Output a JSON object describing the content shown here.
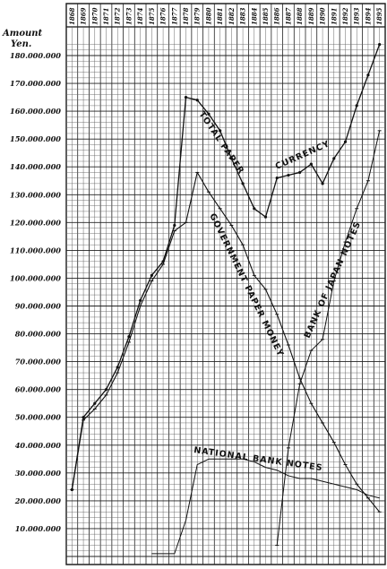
{
  "chart_data": {
    "type": "line",
    "title": "",
    "ylabel": "Amount Yen.",
    "xlabel": "",
    "ylim": [
      0,
      190000000
    ],
    "grid": true,
    "x": [
      "1868",
      "1869",
      "1870",
      "1871",
      "1872",
      "1873",
      "1874",
      "1875",
      "1876",
      "1877",
      "1878",
      "1879",
      "1880",
      "1881",
      "1882",
      "1883",
      "1884",
      "1885",
      "1886",
      "1887",
      "1888",
      "1889",
      "1890",
      "1891",
      "1892",
      "1893",
      "1894",
      "1895"
    ],
    "y_ticks": [
      {
        "value": 10000000,
        "label": "10.000.000"
      },
      {
        "value": 20000000,
        "label": "20.000.000"
      },
      {
        "value": 30000000,
        "label": "30.000.000"
      },
      {
        "value": 40000000,
        "label": "40.000.000"
      },
      {
        "value": 50000000,
        "label": "50.000.000"
      },
      {
        "value": 60000000,
        "label": "60.000.000"
      },
      {
        "value": 70000000,
        "label": "70.000.000"
      },
      {
        "value": 80000000,
        "label": "80.000.000"
      },
      {
        "value": 90000000,
        "label": "90.000.000"
      },
      {
        "value": 100000000,
        "label": "100.000.000"
      },
      {
        "value": 110000000,
        "label": "110.000.000"
      },
      {
        "value": 120000000,
        "label": "120.000.000"
      },
      {
        "value": 130000000,
        "label": "130.000.000"
      },
      {
        "value": 140000000,
        "label": "140.000.000"
      },
      {
        "value": 150000000,
        "label": "150.000.000"
      },
      {
        "value": 160000000,
        "label": "160.000.000"
      },
      {
        "value": 170000000,
        "label": "170.000.000"
      },
      {
        "value": 180000000,
        "label": "180.000.000"
      }
    ],
    "series": [
      {
        "name": "TOTAL PAPER CURRENCY",
        "values": [
          24000000,
          50000000,
          55000000,
          60000000,
          68000000,
          79000000,
          92000000,
          101000000,
          106000000,
          119000000,
          165000000,
          164000000,
          159000000,
          153000000,
          143000000,
          134000000,
          125000000,
          122000000,
          136000000,
          137000000,
          138000000,
          141000000,
          134000000,
          143000000,
          149000000,
          162000000,
          173000000,
          184000000
        ]
      },
      {
        "name": "GOVERNMENT PAPER MONEY",
        "values": [
          24000000,
          49000000,
          53000000,
          58000000,
          66000000,
          77000000,
          90000000,
          99000000,
          105000000,
          117000000,
          120000000,
          138000000,
          131000000,
          125000000,
          119000000,
          112000000,
          101000000,
          96000000,
          87000000,
          76000000,
          64000000,
          55000000,
          48000000,
          41000000,
          33000000,
          26000000,
          21000000,
          16000000
        ]
      },
      {
        "name": "NATIONAL BANK NOTES",
        "values": [
          null,
          null,
          null,
          null,
          null,
          null,
          null,
          1000000,
          1000000,
          1000000,
          13000000,
          33000000,
          35000000,
          35000000,
          35000000,
          35000000,
          34000000,
          32000000,
          31000000,
          29000000,
          28000000,
          28000000,
          27000000,
          26000000,
          25000000,
          24000000,
          22000000,
          21000000
        ]
      },
      {
        "name": "BANK OF JAPAN NOTES",
        "values": [
          null,
          null,
          null,
          null,
          null,
          null,
          null,
          null,
          null,
          null,
          null,
          null,
          null,
          null,
          null,
          null,
          null,
          null,
          4000000,
          39000000,
          62000000,
          74000000,
          78000000,
          99000000,
          113000000,
          125000000,
          135000000,
          153000000
        ]
      }
    ],
    "annotations": [
      {
        "text": "TOTAL PAPER",
        "series": "TOTAL PAPER CURRENCY"
      },
      {
        "text": "CURRENCY",
        "series": "TOTAL PAPER CURRENCY"
      },
      {
        "text": "GOVERNMENT PAPER MONEY",
        "series": "GOVERNMENT PAPER MONEY"
      },
      {
        "text": "NATIONAL BANK NOTES",
        "series": "NATIONAL BANK NOTES"
      },
      {
        "text": "BANK OF JAPAN NOTES",
        "series": "BANK OF JAPAN NOTES"
      }
    ]
  }
}
